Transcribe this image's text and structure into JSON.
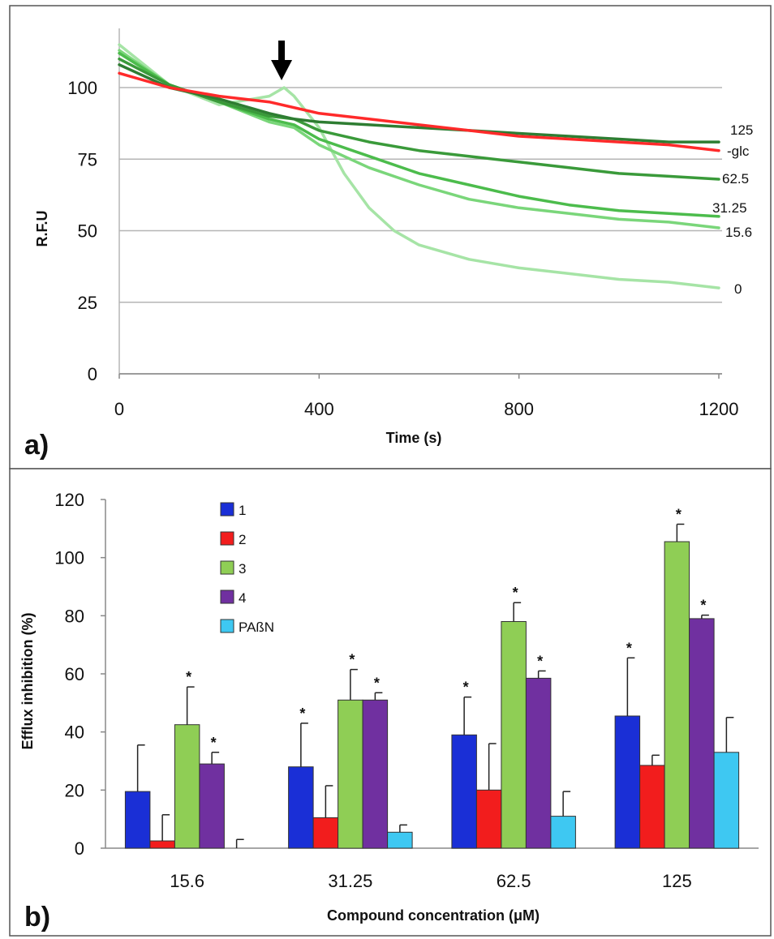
{
  "chart_data": [
    {
      "panel": "a)",
      "type": "line",
      "xlabel": "Time (s)",
      "ylabel": "R.F.U",
      "xlim": [
        0,
        1200
      ],
      "ylim": [
        0,
        100
      ],
      "xticks": [
        0,
        400,
        800,
        1200
      ],
      "yticks": [
        0,
        25,
        50,
        75,
        100
      ],
      "grid": "horizontal",
      "arrow_at_x": 320,
      "series": [
        {
          "name": "-glc",
          "color": "#ff2a2a",
          "points": [
            [
              0,
              105
            ],
            [
              100,
              100
            ],
            [
              200,
              97
            ],
            [
              300,
              95
            ],
            [
              400,
              91
            ],
            [
              500,
              89
            ],
            [
              600,
              87
            ],
            [
              700,
              85
            ],
            [
              800,
              83
            ],
            [
              900,
              82
            ],
            [
              1000,
              81
            ],
            [
              1100,
              80
            ],
            [
              1200,
              78
            ]
          ]
        },
        {
          "name": "125",
          "color": "#2e7d32",
          "points": [
            [
              0,
              108
            ],
            [
              100,
              100
            ],
            [
              200,
              96
            ],
            [
              300,
              91
            ],
            [
              350,
              89
            ],
            [
              400,
              88
            ],
            [
              500,
              87
            ],
            [
              600,
              86
            ],
            [
              700,
              85
            ],
            [
              800,
              84
            ],
            [
              900,
              83
            ],
            [
              1000,
              82
            ],
            [
              1100,
              81
            ],
            [
              1200,
              81
            ]
          ]
        },
        {
          "name": "62.5",
          "color": "#3a9a3a",
          "points": [
            [
              0,
              110
            ],
            [
              100,
              101
            ],
            [
              200,
              95
            ],
            [
              300,
              90
            ],
            [
              350,
              89
            ],
            [
              400,
              85
            ],
            [
              500,
              81
            ],
            [
              600,
              78
            ],
            [
              700,
              76
            ],
            [
              800,
              74
            ],
            [
              900,
              72
            ],
            [
              1000,
              70
            ],
            [
              1100,
              69
            ],
            [
              1200,
              68
            ]
          ]
        },
        {
          "name": "31.25",
          "color": "#4cbc4c",
          "points": [
            [
              0,
              112
            ],
            [
              100,
              101
            ],
            [
              200,
              95
            ],
            [
              300,
              89
            ],
            [
              350,
              87
            ],
            [
              400,
              82
            ],
            [
              500,
              76
            ],
            [
              600,
              70
            ],
            [
              700,
              66
            ],
            [
              800,
              62
            ],
            [
              900,
              59
            ],
            [
              1000,
              57
            ],
            [
              1100,
              56
            ],
            [
              1200,
              55
            ]
          ]
        },
        {
          "name": "15.6",
          "color": "#7ad67a",
          "points": [
            [
              0,
              113
            ],
            [
              100,
              101
            ],
            [
              200,
              95
            ],
            [
              300,
              88
            ],
            [
              350,
              86
            ],
            [
              400,
              80
            ],
            [
              500,
              72
            ],
            [
              600,
              66
            ],
            [
              700,
              61
            ],
            [
              800,
              58
            ],
            [
              900,
              56
            ],
            [
              1000,
              54
            ],
            [
              1100,
              53
            ],
            [
              1200,
              51
            ]
          ]
        },
        {
          "name": "0",
          "color": "#a6e4a6",
          "points": [
            [
              0,
              115
            ],
            [
              100,
              101
            ],
            [
              200,
              94
            ],
            [
              300,
              97
            ],
            [
              330,
              100
            ],
            [
              350,
              97
            ],
            [
              400,
              86
            ],
            [
              450,
              70
            ],
            [
              500,
              58
            ],
            [
              550,
              50
            ],
            [
              600,
              45
            ],
            [
              700,
              40
            ],
            [
              800,
              37
            ],
            [
              900,
              35
            ],
            [
              1000,
              33
            ],
            [
              1100,
              32
            ],
            [
              1200,
              30
            ]
          ]
        }
      ]
    },
    {
      "panel": "b)",
      "type": "bar",
      "xlabel": "Compound concentration (μM)",
      "ylabel": "Efflux inhibition (%)",
      "ylim": [
        0,
        120
      ],
      "yticks": [
        0,
        20,
        40,
        60,
        80,
        100,
        120
      ],
      "categories": [
        "15.6",
        "31.25",
        "62.5",
        "125"
      ],
      "legend_position": "top-left",
      "series": [
        {
          "name": "1",
          "color": "#1a2fd6",
          "values": [
            19.5,
            28,
            39,
            45.5
          ],
          "errors": [
            16,
            15,
            13,
            20
          ],
          "significant": [
            false,
            true,
            true,
            true
          ]
        },
        {
          "name": "2",
          "color": "#f21d1d",
          "values": [
            2.5,
            10.5,
            20,
            28.5
          ],
          "errors": [
            9,
            11,
            16,
            3.5
          ],
          "significant": [
            false,
            false,
            false,
            false
          ]
        },
        {
          "name": "3",
          "color": "#8fce55",
          "values": [
            42.5,
            51,
            78,
            105.5
          ],
          "errors": [
            13,
            10.5,
            6.5,
            6
          ],
          "significant": [
            true,
            true,
            true,
            true
          ]
        },
        {
          "name": "4",
          "color": "#7030a0",
          "values": [
            29,
            51,
            58.5,
            79
          ],
          "errors": [
            4,
            2.5,
            2.5,
            1.2
          ],
          "significant": [
            true,
            true,
            true,
            true
          ]
        },
        {
          "name": "PAßN",
          "color": "#3ec8f2",
          "values": [
            0,
            5.5,
            11,
            33
          ],
          "errors": [
            3,
            2.5,
            8.5,
            12
          ],
          "significant": [
            false,
            false,
            false,
            false
          ]
        }
      ],
      "significance_marker": "*"
    }
  ]
}
